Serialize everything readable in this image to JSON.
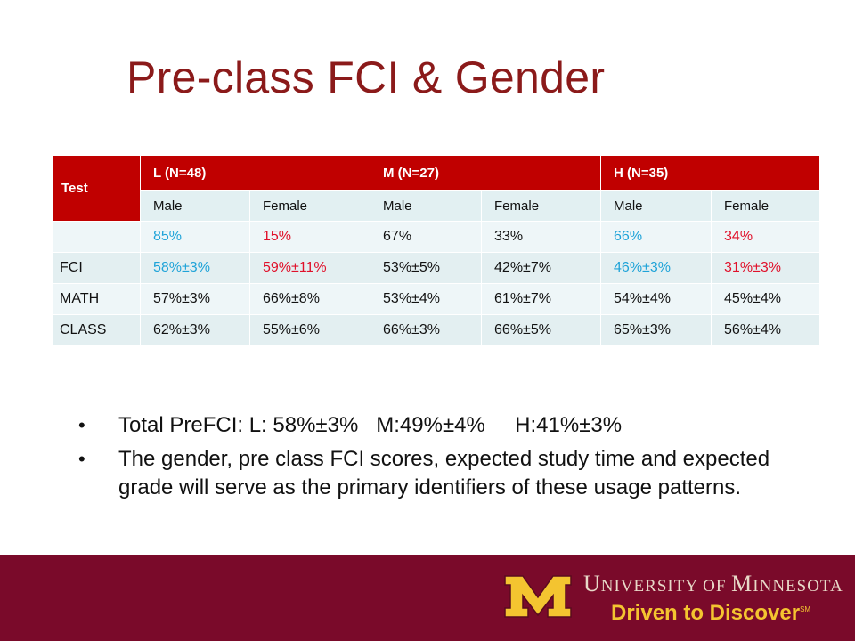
{
  "slide": {
    "title": "Pre-class FCI & Gender"
  },
  "table": {
    "header": [
      "Test",
      "L (N=48)",
      "M (N=27)",
      "H (N=35)"
    ],
    "subheader": [
      "Male",
      "Female",
      "Male",
      "Female",
      "Male",
      "Female"
    ],
    "rows": [
      {
        "label": "",
        "cells": [
          "85%",
          "15%",
          "67%",
          "33%",
          "66%",
          "34%"
        ]
      },
      {
        "label": "FCI",
        "cells": [
          "58%±3%",
          "59%±11%",
          "53%±5%",
          "42%±7%",
          "46%±3%",
          "31%±3%"
        ]
      },
      {
        "label": "MATH",
        "cells": [
          "57%±3%",
          "66%±8%",
          "53%±4%",
          "61%±7%",
          "54%±4%",
          "45%±4%"
        ]
      },
      {
        "label": "CLASS",
        "cells": [
          "62%±3%",
          "55%±6%",
          "66%±3%",
          "66%±5%",
          "65%±3%",
          "56%±4%"
        ]
      }
    ],
    "colors": {
      "header_bg": "#c00000",
      "blue_text": "#1fa3d8",
      "red_text": "#e0102a"
    }
  },
  "bullets": [
    "Total PreFCI: L: 58%±3%   M:49%±4%     H:41%±3%",
    "The gender, pre class FCI scores, expected study time and expected grade will serve as the primary identifiers of these usage patterns."
  ],
  "footer": {
    "university_parts": [
      "U",
      "NIVERSITY OF ",
      "M",
      "INNESOTA"
    ],
    "tagline": "Driven to Discover",
    "tagline_mark": "SM",
    "colors": {
      "background": "#7a0a2a",
      "gold": "#f4c430"
    }
  }
}
